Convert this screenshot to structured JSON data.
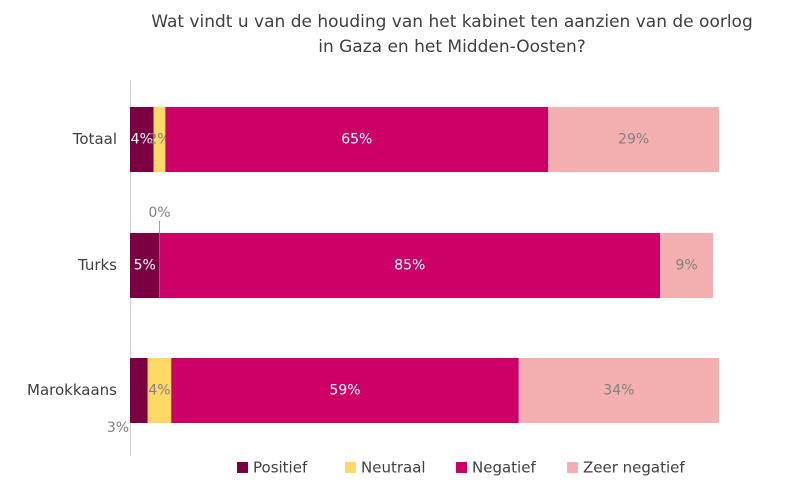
{
  "chart_data": {
    "type": "stacked-bar-horizontal",
    "title": [
      "Wat vindt u van de houding van het kabinet ten aanzien van de oorlog",
      "in Gaza en het Midden-Oosten?"
    ],
    "categories": [
      "Totaal",
      "Turks",
      "Marokkaans"
    ],
    "xlim": [
      0,
      100
    ],
    "legend": "bottom",
    "series": [
      {
        "name": "Positief",
        "color": "#7b0041",
        "values": [
          4,
          5,
          3
        ],
        "value_labels": [
          "4%",
          "5%",
          "3%"
        ]
      },
      {
        "name": "Neutraal",
        "color": "#ffd966",
        "values": [
          2,
          0,
          4
        ],
        "value_labels": [
          "2%",
          "0%",
          "4%"
        ]
      },
      {
        "name": "Negatief",
        "color": "#cc0066",
        "values": [
          65,
          85,
          59
        ],
        "value_labels": [
          "65%",
          "85%",
          "59%"
        ]
      },
      {
        "name": "Zeer negatief",
        "color": "#f4b0b0",
        "values": [
          29,
          9,
          34
        ],
        "value_labels": [
          "29%",
          "9%",
          "34%"
        ]
      }
    ]
  }
}
